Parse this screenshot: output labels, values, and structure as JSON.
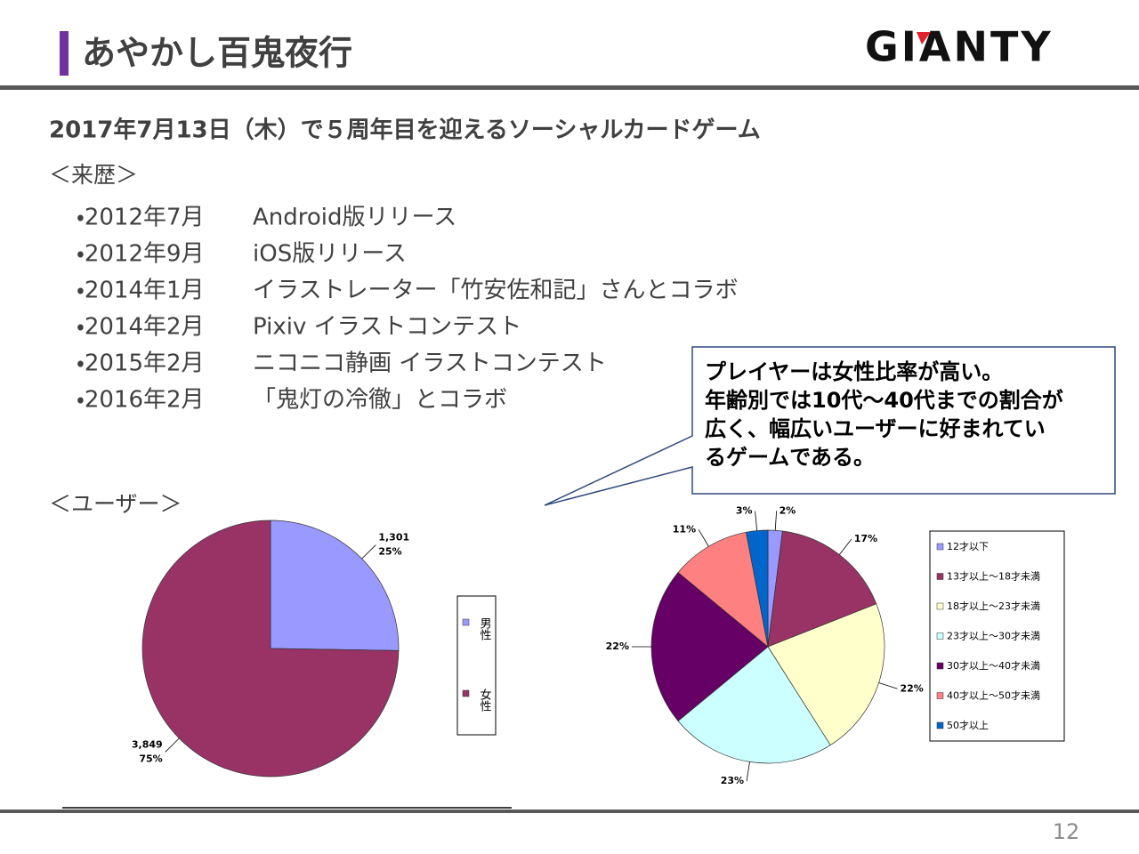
{
  "header": {
    "title": "あやかし百鬼夜行",
    "logo": "GIANTY"
  },
  "subtitle": "2017年7月13日（木）で５周年目を迎えるソーシャルカードゲーム",
  "history": {
    "heading": "＜来歴＞",
    "items": [
      {
        "date": "・2012年7月",
        "text": "Android版リリース"
      },
      {
        "date": "・2012年9月",
        "text": "iOS版リリース"
      },
      {
        "date": "・2014年1月",
        "text": "イラストレーター「竹安佐和記」さんとコラボ"
      },
      {
        "date": "・2014年2月",
        "text": "Pixiv イラストコンテスト"
      },
      {
        "date": "・2015年2月",
        "text": "ニコニコ静画 イラストコンテスト"
      },
      {
        "date": "・2016年2月",
        "text": "「鬼灯の冷徹」とコラボ"
      }
    ]
  },
  "users": {
    "heading": "＜ユーザー＞"
  },
  "callout": {
    "lines": [
      "プレイヤーは女性比率が高い。",
      "年齢別では10代〜40代までの割合が",
      "広く、幅広いユーザーに好まれてい",
      "るゲームである。"
    ]
  },
  "chart_data": [
    {
      "type": "pie",
      "categories": [
        "男性",
        "女性"
      ],
      "values": [
        1301,
        3849
      ],
      "value_labels": [
        "1,301",
        "3,849"
      ],
      "percent_labels": [
        "25%",
        "75%"
      ],
      "colors": [
        "#9999ff",
        "#993366"
      ]
    },
    {
      "type": "pie",
      "categories": [
        "12才以下",
        "13才以上〜18才未満",
        "18才以上〜23才未満",
        "23才以上〜30才未満",
        "30才以上〜40才未満",
        "40才以上〜50才未満",
        "50才以上"
      ],
      "values": [
        2,
        17,
        22,
        23,
        22,
        11,
        3
      ],
      "value_labels": [
        "2%",
        "17%",
        "22%",
        "23%",
        "22%",
        "11%",
        "3%"
      ],
      "colors": [
        "#9999ff",
        "#993366",
        "#ffffcc",
        "#ccffff",
        "#660066",
        "#ff8080",
        "#0066cc"
      ]
    }
  ],
  "page_number": "12"
}
